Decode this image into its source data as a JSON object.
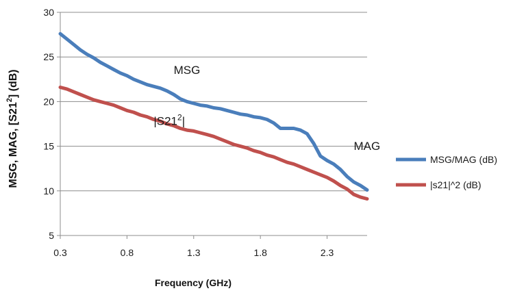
{
  "chart_data": {
    "type": "line",
    "title": "",
    "xlabel": "Frequency (GHz)",
    "ylabel": "MSG, MAG, [S21",
    "ylabel_sup": "2",
    "ylabel_tail": "] (dB)",
    "xlim": [
      0.3,
      2.6
    ],
    "ylim": [
      5,
      30
    ],
    "x_ticks": [
      0.3,
      0.8,
      1.3,
      1.8,
      2.3
    ],
    "x_tick_labels": [
      "0.3",
      "0.8",
      "1.3",
      "1.8",
      "2.3"
    ],
    "y_ticks": [
      5,
      10,
      15,
      20,
      25,
      30
    ],
    "y_tick_labels": [
      "5",
      "10",
      "15",
      "20",
      "25",
      "30"
    ],
    "grid": "horizontal",
    "legend_position": "right",
    "series": [
      {
        "name": "MSG/MAG (dB)",
        "color": "#4a7ebb",
        "x": [
          0.3,
          0.35,
          0.4,
          0.45,
          0.5,
          0.55,
          0.6,
          0.65,
          0.7,
          0.75,
          0.8,
          0.85,
          0.9,
          0.95,
          1.0,
          1.05,
          1.1,
          1.15,
          1.2,
          1.25,
          1.3,
          1.35,
          1.4,
          1.45,
          1.5,
          1.55,
          1.6,
          1.65,
          1.7,
          1.75,
          1.8,
          1.85,
          1.9,
          1.95,
          2.0,
          2.05,
          2.1,
          2.15,
          2.2,
          2.25,
          2.3,
          2.35,
          2.4,
          2.45,
          2.5,
          2.55,
          2.6
        ],
        "y": [
          27.6,
          27.0,
          26.4,
          25.8,
          25.3,
          24.9,
          24.4,
          24.0,
          23.6,
          23.2,
          22.9,
          22.5,
          22.2,
          21.9,
          21.7,
          21.5,
          21.2,
          20.8,
          20.3,
          20.0,
          19.8,
          19.6,
          19.5,
          19.3,
          19.2,
          19.0,
          18.8,
          18.6,
          18.5,
          18.3,
          18.2,
          18.0,
          17.6,
          17.0,
          17.0,
          17.0,
          16.8,
          16.4,
          15.3,
          13.9,
          13.4,
          13.0,
          12.4,
          11.6,
          11.0,
          10.6,
          10.1
        ]
      },
      {
        "name": "|s21|^2 (dB)",
        "color": "#c0504d",
        "x": [
          0.3,
          0.35,
          0.4,
          0.45,
          0.5,
          0.55,
          0.6,
          0.65,
          0.7,
          0.75,
          0.8,
          0.85,
          0.9,
          0.95,
          1.0,
          1.05,
          1.1,
          1.15,
          1.2,
          1.25,
          1.3,
          1.35,
          1.4,
          1.45,
          1.5,
          1.55,
          1.6,
          1.65,
          1.7,
          1.75,
          1.8,
          1.85,
          1.9,
          1.95,
          2.0,
          2.05,
          2.1,
          2.15,
          2.2,
          2.25,
          2.3,
          2.35,
          2.4,
          2.45,
          2.5,
          2.55,
          2.6
        ],
        "y": [
          21.6,
          21.4,
          21.1,
          20.8,
          20.5,
          20.2,
          20.0,
          19.8,
          19.6,
          19.3,
          19.0,
          18.8,
          18.5,
          18.3,
          18.0,
          17.8,
          17.5,
          17.3,
          17.0,
          16.8,
          16.7,
          16.5,
          16.3,
          16.1,
          15.8,
          15.5,
          15.2,
          15.0,
          14.8,
          14.5,
          14.3,
          14.0,
          13.8,
          13.5,
          13.2,
          13.0,
          12.7,
          12.4,
          12.1,
          11.8,
          11.5,
          11.1,
          10.6,
          10.2,
          9.6,
          9.3,
          9.1
        ]
      }
    ],
    "annotations": [
      {
        "text": "MSG",
        "x": 1.15,
        "y": 23.1
      },
      {
        "text": "|S21",
        "sup": "2",
        "tail": "|",
        "x": 1.0,
        "y": 17.4
      },
      {
        "text": "MAG",
        "x": 2.5,
        "y": 14.6
      }
    ]
  }
}
